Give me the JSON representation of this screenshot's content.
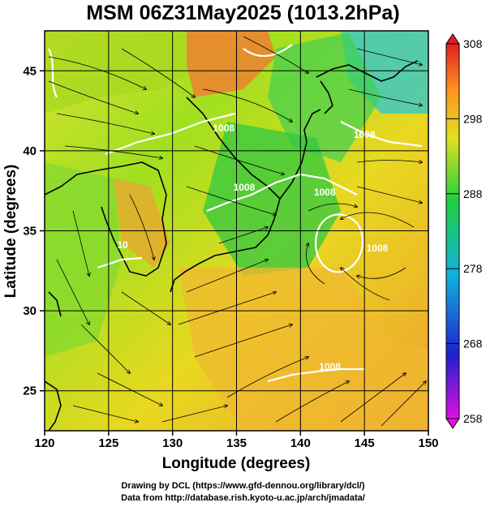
{
  "title": "MSM 06Z31May2025 (1013.2hPa)",
  "x_axis": {
    "label": "Longitude (degrees)",
    "ticks": [
      "120",
      "125",
      "130",
      "135",
      "140",
      "145",
      "150"
    ],
    "range": [
      120,
      150
    ]
  },
  "y_axis": {
    "label": "Latitude  (degrees)",
    "ticks": [
      "25",
      "30",
      "35",
      "40",
      "45"
    ],
    "range": [
      22.5,
      47.5
    ]
  },
  "colorbar": {
    "ticks": [
      "308",
      "298",
      "288",
      "278",
      "268",
      "258"
    ],
    "range": [
      258,
      308
    ],
    "colors": [
      "#e010e0",
      "#2020d0",
      "#10b0e0",
      "#20d040",
      "#e0e020",
      "#ff9020",
      "#e02020"
    ]
  },
  "isobars": [
    {
      "label": "1008",
      "lon": 134.0,
      "lat": 41.2
    },
    {
      "label": "1008",
      "lon": 135.6,
      "lat": 37.5
    },
    {
      "label": "1008",
      "lon": 141.9,
      "lat": 37.2
    },
    {
      "label": "1008",
      "lon": 145.0,
      "lat": 40.8
    },
    {
      "label": "1008",
      "lon": 146.0,
      "lat": 33.7
    },
    {
      "label": "1008",
      "lon": 142.3,
      "lat": 26.3
    },
    {
      "label": "10",
      "lon": 126.1,
      "lat": 33.9
    }
  ],
  "footer": {
    "line1": "Drawing by DCL (https://www.gfd-dennou.org/library/dcl/)",
    "line2": "Data from http://database.rish.kyoto-u.ac.jp/arch/jmadata/"
  }
}
